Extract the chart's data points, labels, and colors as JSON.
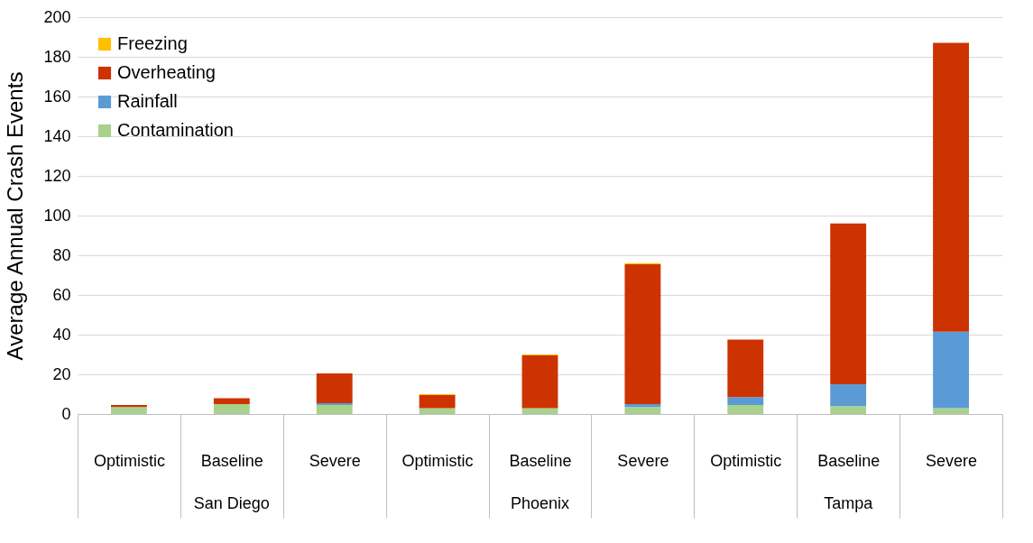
{
  "chart_data": {
    "type": "bar",
    "stacked": true,
    "ylabel": "Average Annual Crash Events",
    "categories": [
      "Optimistic",
      "Baseline",
      "Severe",
      "Optimistic",
      "Baseline",
      "Severe",
      "Optimistic",
      "Baseline",
      "Severe"
    ],
    "annotations": [
      "San Diego",
      "Phoenix",
      "Tampa"
    ],
    "series": [
      {
        "name": "Contamination",
        "color": "#a9d18e",
        "values": [
          3.5,
          5,
          4.5,
          3,
          3,
          3.5,
          4.5,
          4,
          3
        ]
      },
      {
        "name": "Rainfall",
        "color": "#5b9bd5",
        "values": [
          null,
          null,
          1,
          null,
          null,
          1.5,
          4,
          11,
          38.5
        ]
      },
      {
        "name": "Overheating",
        "color": "#cc3300",
        "values": [
          1,
          3,
          15,
          6.5,
          26.5,
          70.5,
          29,
          81,
          145.5
        ]
      },
      {
        "name": "Freezing",
        "color": "#ffc000",
        "values": [
          null,
          null,
          null,
          0.5,
          0.5,
          0.5,
          null,
          null,
          null
        ]
      }
    ],
    "ylim": [
      0,
      200
    ],
    "yticks": [
      0,
      20,
      40,
      60,
      80,
      100,
      120,
      140,
      160,
      180,
      200
    ],
    "grid": "y",
    "legend": "top left"
  }
}
